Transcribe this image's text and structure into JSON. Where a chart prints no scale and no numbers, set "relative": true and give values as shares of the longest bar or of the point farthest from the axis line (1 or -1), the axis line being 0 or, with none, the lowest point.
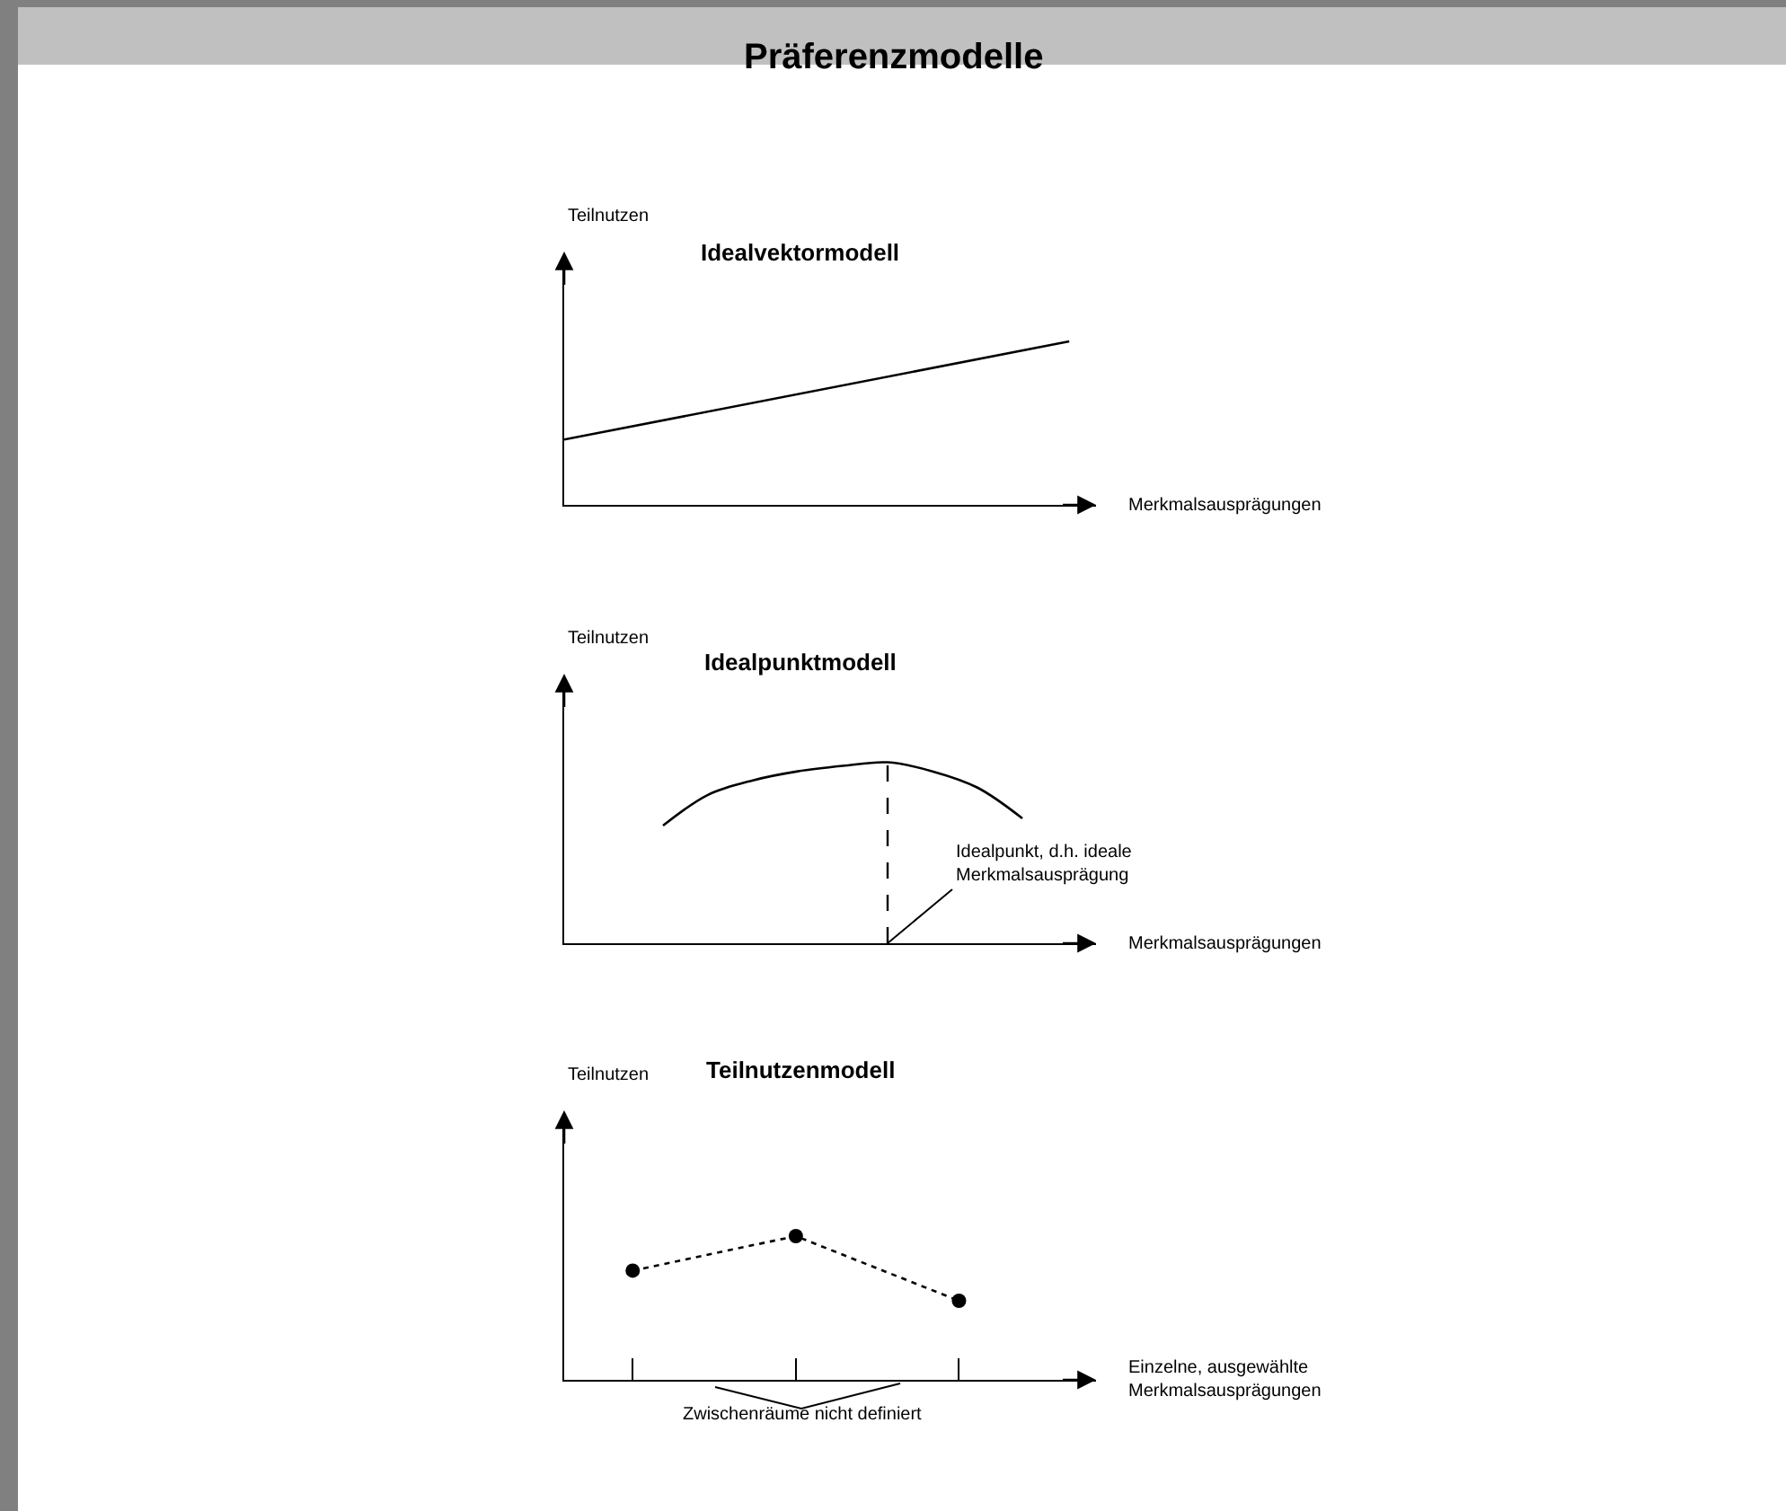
{
  "chart_data": [
    {
      "type": "other",
      "title": "Präferenzmodelle"
    },
    {
      "type": "line",
      "title": "Idealvektormodell",
      "xlabel": "Merkmalsausprägungen",
      "ylabel": "Teilnutzen",
      "categories": [
        null,
        null
      ],
      "values": [
        0.4,
        1.0
      ],
      "color": "#000000",
      "relative": true,
      "marker": "none",
      "line_style": "solid"
    },
    {
      "type": "line",
      "title": "Idealpunktmodell",
      "xlabel": "Merkmalsausprägungen",
      "ylabel": "Teilnutzen",
      "categories": [
        null,
        null,
        null,
        null,
        null,
        null,
        null,
        null,
        null
      ],
      "values": [
        0.65,
        0.82,
        0.9,
        0.95,
        0.98,
        1.0,
        0.95,
        0.86,
        0.69
      ],
      "color": "#000000",
      "relative": true,
      "marker": "none",
      "line_style": "solid",
      "annotations": [
        "Idealpunkt, d.h. ideale\nMerkmalsausprägung"
      ]
    },
    {
      "type": "line",
      "title": "Teilnutzenmodell",
      "xlabel": "Einzelne, ausgewählte\nMerkmalsausprägungen",
      "ylabel": "Teilnutzen",
      "categories": [
        null,
        null,
        null
      ],
      "values": [
        0.76,
        1.0,
        0.55
      ],
      "color": "#000000",
      "relative": true,
      "marker": "circle",
      "line_style": "dotted",
      "annotations": [
        "Zwischenräume nicht definiert"
      ]
    }
  ]
}
